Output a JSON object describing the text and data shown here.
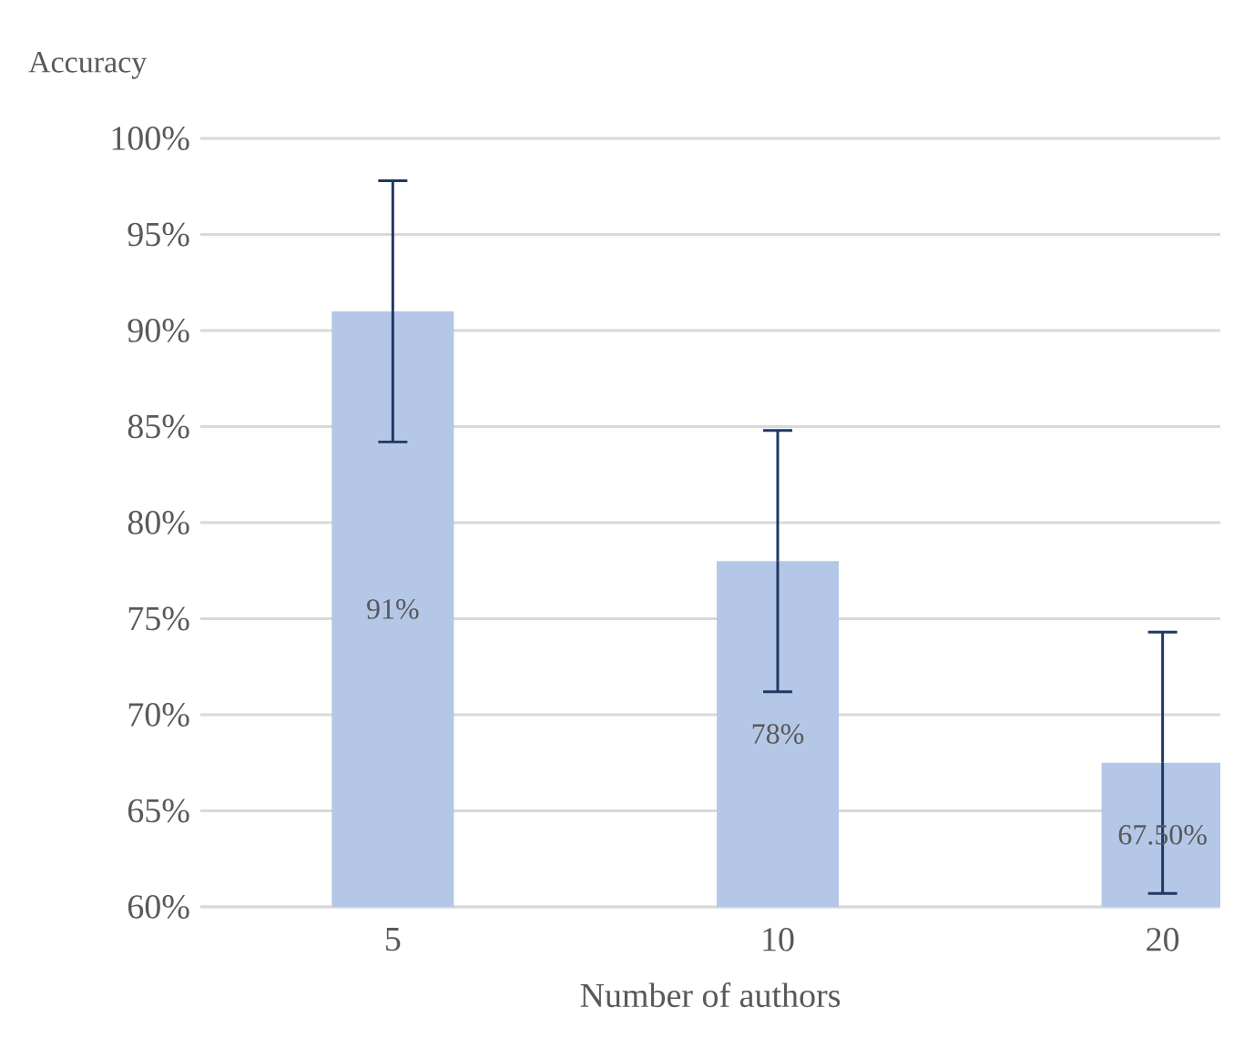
{
  "chart_data": {
    "type": "bar",
    "ylabel": "Accuracy",
    "xlabel": "Number of authors",
    "categories": [
      "5",
      "10",
      "20"
    ],
    "values": [
      91,
      78,
      67.5
    ],
    "errors": [
      6.8,
      6.8,
      6.8
    ],
    "value_labels": [
      "91%",
      "78%",
      "67.50%"
    ],
    "color": "#b4c7e7",
    "ylim": [
      60,
      100
    ],
    "yticks": [
      {
        "value": 60,
        "label": "60%"
      },
      {
        "value": 65,
        "label": "65%"
      },
      {
        "value": 70,
        "label": "70%"
      },
      {
        "value": 75,
        "label": "75%"
      },
      {
        "value": 80,
        "label": "80%"
      },
      {
        "value": 85,
        "label": "85%"
      },
      {
        "value": 90,
        "label": "90%"
      },
      {
        "value": 95,
        "label": "95%"
      },
      {
        "value": 100,
        "label": "100%"
      }
    ],
    "grid": "y"
  }
}
